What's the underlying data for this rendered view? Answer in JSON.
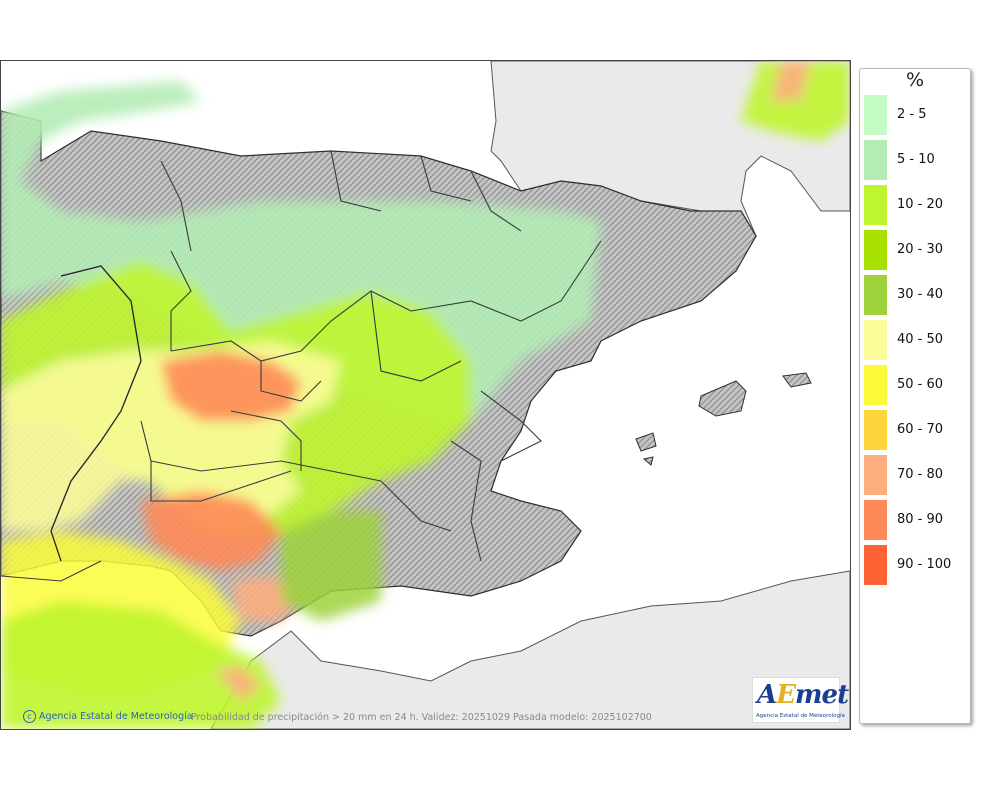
{
  "map": {
    "footer_credit": "Agencia Estatal de Meteorología",
    "footer_caption": "Probabilidad de precipitación > 20 mm en 24 h. Validez: 20251029 Pasada modelo: 2025102700",
    "logo": {
      "word_a": "A",
      "word_e": "E",
      "word_met": "met",
      "subtitle": "Agencia Estatal de Meteorología"
    },
    "colors": {
      "sea": "#ffffff",
      "foreign_land": "#eaeaea",
      "terrain": "#c9c9c9",
      "border": "#3a3a3a"
    }
  },
  "legend": {
    "unit": "%",
    "items": [
      {
        "label": "2 - 5",
        "color": "#c5fbc5"
      },
      {
        "label": "5 - 10",
        "color": "#b4ecb6"
      },
      {
        "label": "10 - 20",
        "color": "#bff52f"
      },
      {
        "label": "20 - 30",
        "color": "#a8e000"
      },
      {
        "label": "30 - 40",
        "color": "#9ed23a"
      },
      {
        "label": "40 - 50",
        "color": "#fbfb99"
      },
      {
        "label": "50 - 60",
        "color": "#fbfb3a"
      },
      {
        "label": "60 - 70",
        "color": "#fdd43a"
      },
      {
        "label": "70 - 80",
        "color": "#fdae7e"
      },
      {
        "label": "80 - 90",
        "color": "#fe8a57"
      },
      {
        "label": "90 - 100",
        "color": "#fe6333"
      }
    ]
  }
}
